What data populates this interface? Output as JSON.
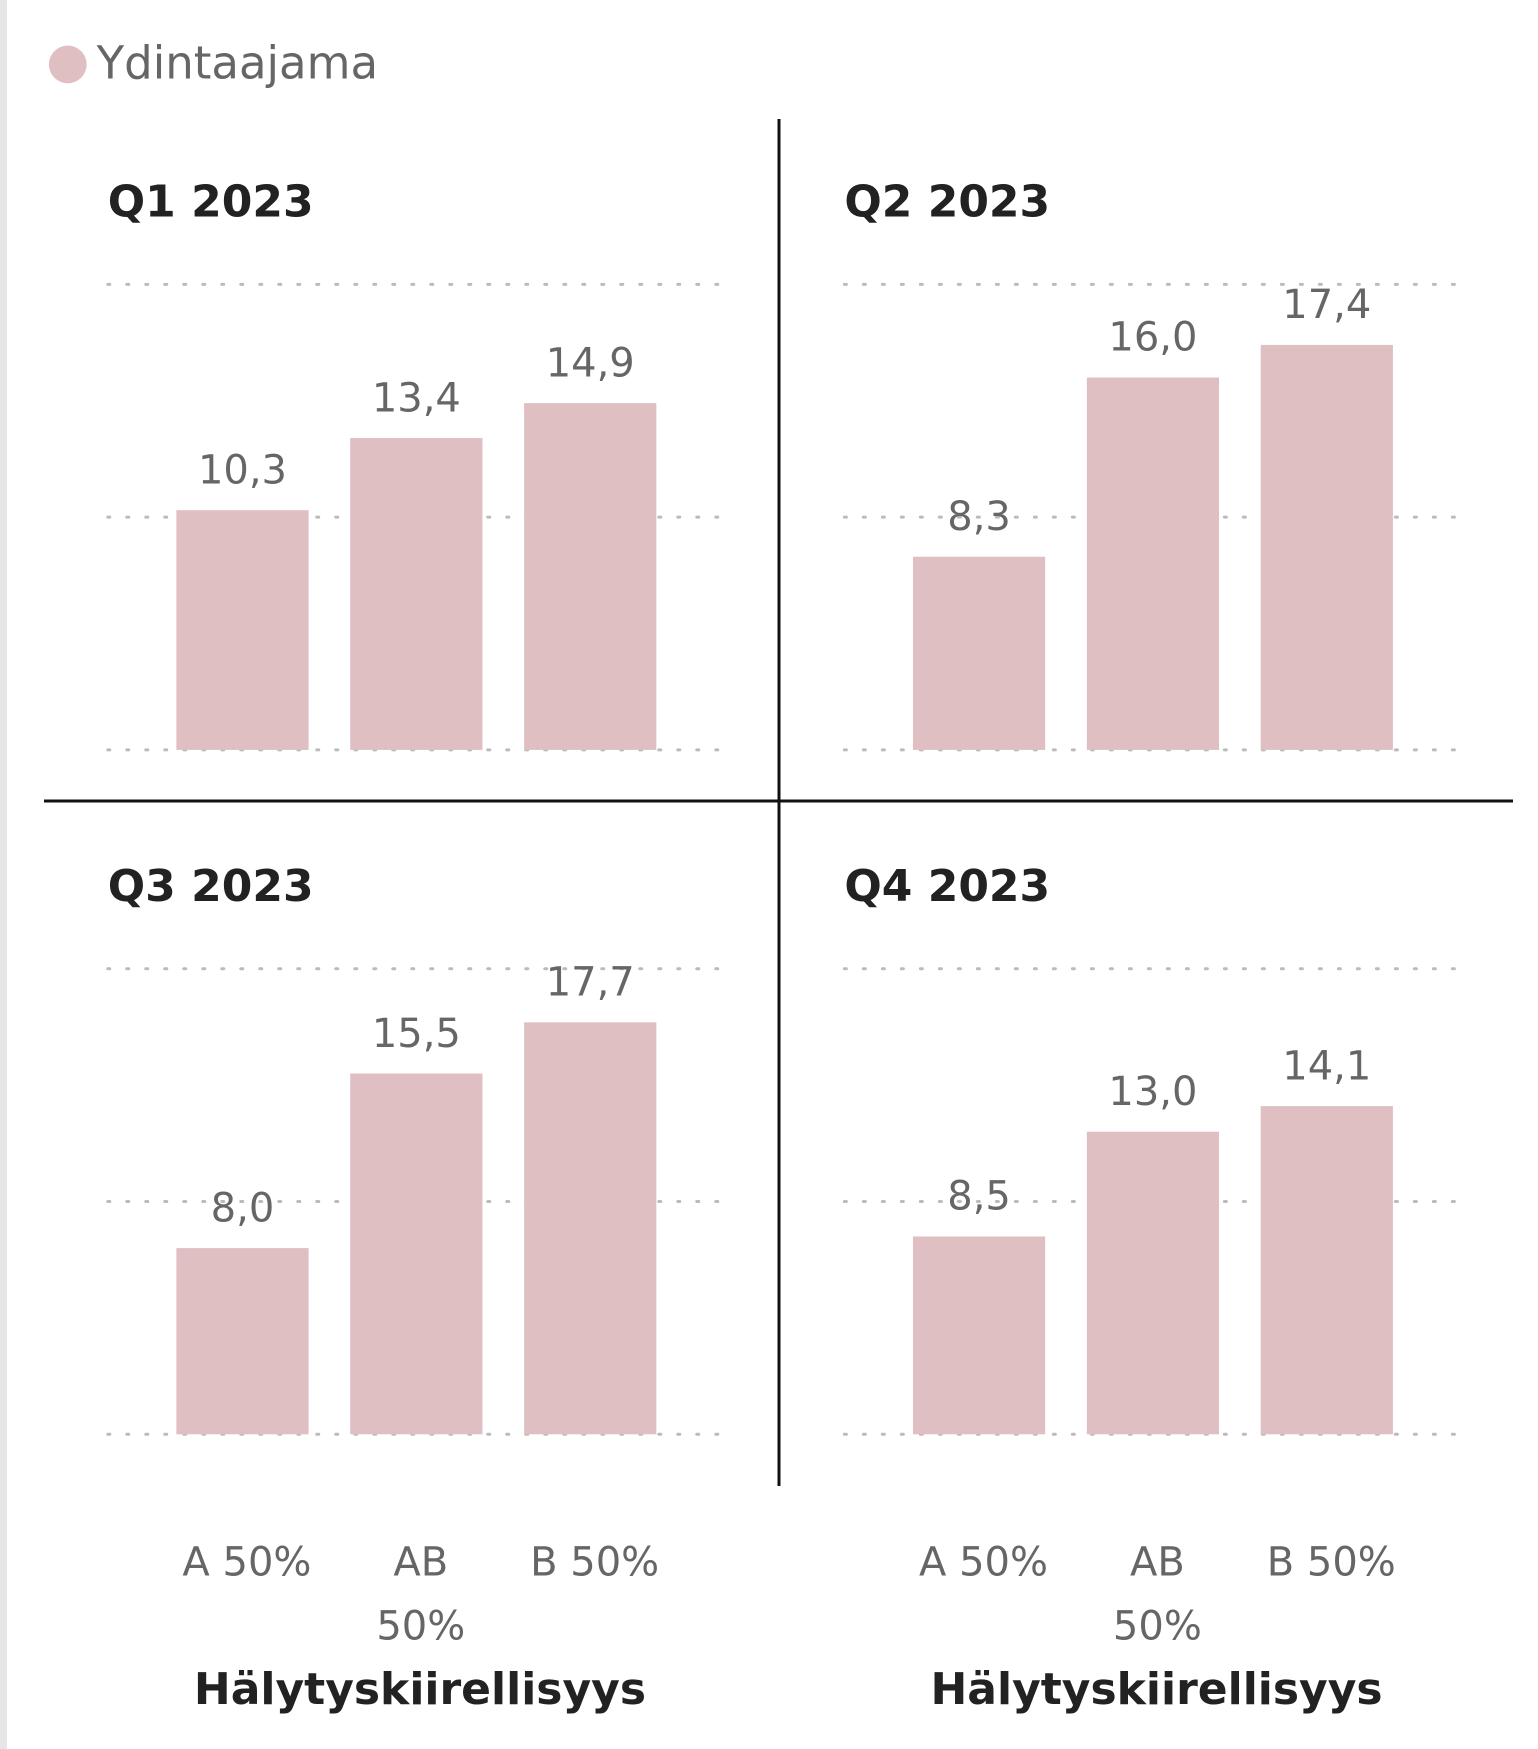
{
  "chart_data": [
    {
      "type": "bar",
      "title": "Q1 2023",
      "series": [
        {
          "name": "Ydintaajama",
          "color": "#dfbfc2",
          "values": [
            10.3,
            13.4,
            14.9
          ],
          "value_labels": [
            "10,3",
            "13,4",
            "14,9"
          ]
        }
      ],
      "ylim": [
        0,
        20
      ],
      "yticks": [
        0,
        10,
        20
      ],
      "grid": true
    },
    {
      "type": "bar",
      "title": "Q2 2023",
      "series": [
        {
          "name": "Ydintaajama",
          "color": "#dfbfc2",
          "values": [
            8.3,
            16.0,
            17.4
          ],
          "value_labels": [
            "8,3",
            "16,0",
            "17,4"
          ]
        }
      ],
      "ylim": [
        0,
        20
      ],
      "yticks": [
        0,
        10,
        20
      ],
      "grid": true
    },
    {
      "type": "bar",
      "title": "Q3 2023",
      "xlabel": "Hälytyskiirellisyys",
      "categories": [
        "A 50%",
        "AB 50%",
        "B 50%"
      ],
      "series": [
        {
          "name": "Ydintaajama",
          "color": "#dfbfc2",
          "values": [
            8.0,
            15.5,
            17.7
          ],
          "value_labels": [
            "8,0",
            "15,5",
            "17,7"
          ]
        }
      ],
      "ylim": [
        0,
        20
      ],
      "yticks": [
        0,
        10,
        20
      ],
      "grid": true
    },
    {
      "type": "bar",
      "title": "Q4 2023",
      "xlabel": "Hälytyskiirellisyys",
      "categories": [
        "A 50%",
        "AB 50%",
        "B 50%"
      ],
      "series": [
        {
          "name": "Ydintaajama",
          "color": "#dfbfc2",
          "values": [
            8.5,
            13.0,
            14.1
          ],
          "value_labels": [
            "8,5",
            "13,0",
            "14,1"
          ]
        }
      ],
      "ylim": [
        0,
        20
      ],
      "yticks": [
        0,
        10,
        20
      ],
      "grid": true
    }
  ]
}
